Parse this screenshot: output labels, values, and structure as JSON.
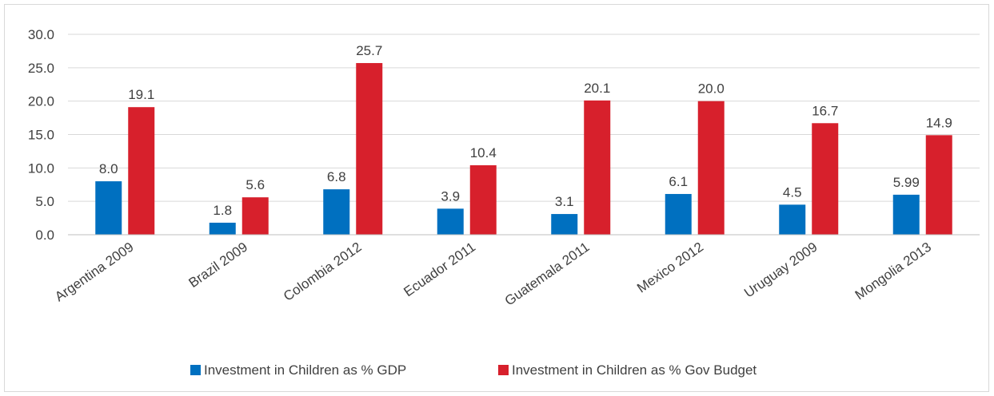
{
  "chart_data": {
    "type": "bar",
    "categories": [
      "Argentina 2009",
      "Brazil 2009",
      "Colombia 2012",
      "Ecuador 2011",
      "Guatemala 2011",
      "Mexico 2012",
      "Uruguay 2009",
      "Mongolia 2013"
    ],
    "series": [
      {
        "name": "Investment in Children as % GDP",
        "color": "#0070c0",
        "values": [
          8.0,
          1.8,
          6.8,
          3.9,
          3.1,
          6.1,
          4.5,
          5.99
        ],
        "labels": [
          "8.0",
          "1.8",
          "6.8",
          "3.9",
          "3.1",
          "6.1",
          "4.5",
          "5.99"
        ]
      },
      {
        "name": "Investment in Children as % Gov Budget",
        "color": "#d7202c",
        "values": [
          19.1,
          5.6,
          25.7,
          10.4,
          20.1,
          20.0,
          16.7,
          14.9
        ],
        "labels": [
          "19.1",
          "5.6",
          "25.7",
          "10.4",
          "20.1",
          "20.0",
          "16.7",
          "14.9"
        ]
      }
    ],
    "ylim": [
      0,
      30
    ],
    "yticks": [
      "0.0",
      "5.0",
      "10.0",
      "15.0",
      "20.0",
      "25.0",
      "30.0"
    ],
    "grid": true,
    "legend_position": "bottom"
  }
}
